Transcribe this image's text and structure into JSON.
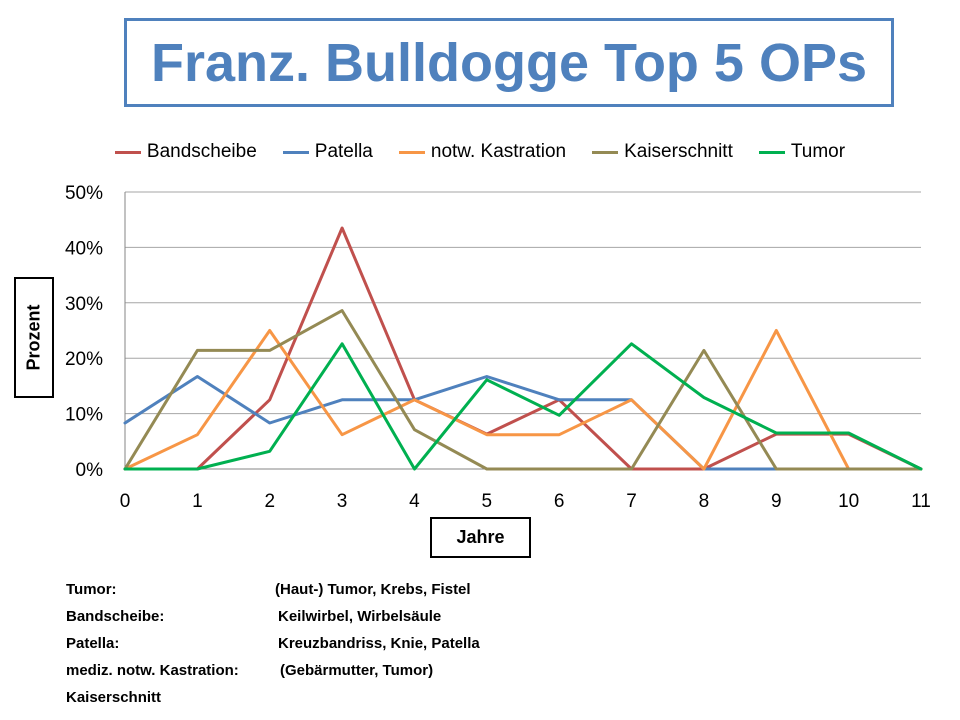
{
  "title": "Franz. Bulldogge Top 5 OPs",
  "legend_entries": [
    "Bandscheibe",
    "Patella",
    "notw. Kastration",
    "Kaiserschnitt",
    "Tumor"
  ],
  "notes": [
    {
      "term": "Tumor:",
      "desc": "(Haut-) Tumor, Krebs, Fistel"
    },
    {
      "term": "Bandscheibe:",
      "desc": "Keilwirbel, Wirbelsäule"
    },
    {
      "term": "Patella:",
      "desc": "Kreuzbandriss, Knie, Patella"
    },
    {
      "term": "mediz. notw. Kastration:",
      "desc": "(Gebärmutter, Tumor)"
    },
    {
      "term": "Kaiserschnitt",
      "desc": ""
    }
  ],
  "chart_data": {
    "type": "line",
    "title": "Franz. Bulldogge Top 5 OPs",
    "xlabel": "Jahre",
    "ylabel": "Prozent",
    "x": [
      0,
      1,
      2,
      3,
      4,
      5,
      6,
      7,
      8,
      9,
      10,
      11
    ],
    "x_tick_labels": [
      "0",
      "1",
      "2",
      "3",
      "4",
      "5",
      "6",
      "7",
      "8",
      "9",
      "10",
      "11"
    ],
    "y_tick_labels": [
      "0%",
      "10%",
      "20%",
      "30%",
      "40%",
      "50%"
    ],
    "ylim": [
      0,
      50
    ],
    "xlim": [
      0,
      11
    ],
    "grid": "horizontal",
    "legend_position": "top",
    "series": [
      {
        "name": "Bandscheibe",
        "color": "#c0504d",
        "values": [
          0,
          0,
          12.5,
          43.5,
          12.5,
          6.3,
          12.5,
          0,
          0,
          6.3,
          6.3,
          0
        ]
      },
      {
        "name": "Patella",
        "color": "#4f81bd",
        "values": [
          8.3,
          16.7,
          8.3,
          12.5,
          12.5,
          16.7,
          12.5,
          12.5,
          0,
          0,
          null,
          null
        ]
      },
      {
        "name": "notw. Kastration",
        "color": "#f79646",
        "values": [
          0,
          6.2,
          25,
          6.2,
          12.5,
          6.2,
          6.2,
          12.5,
          0,
          25,
          0,
          0
        ]
      },
      {
        "name": "Kaiserschnitt",
        "color": "#948a54",
        "values": [
          0,
          21.4,
          21.4,
          28.6,
          7.1,
          0,
          0,
          0,
          21.4,
          0,
          0,
          0
        ]
      },
      {
        "name": "Tumor",
        "color": "#00b050",
        "values": [
          0,
          0,
          3.2,
          22.6,
          0,
          16.1,
          9.7,
          22.6,
          12.9,
          6.5,
          6.5,
          0
        ]
      }
    ]
  }
}
